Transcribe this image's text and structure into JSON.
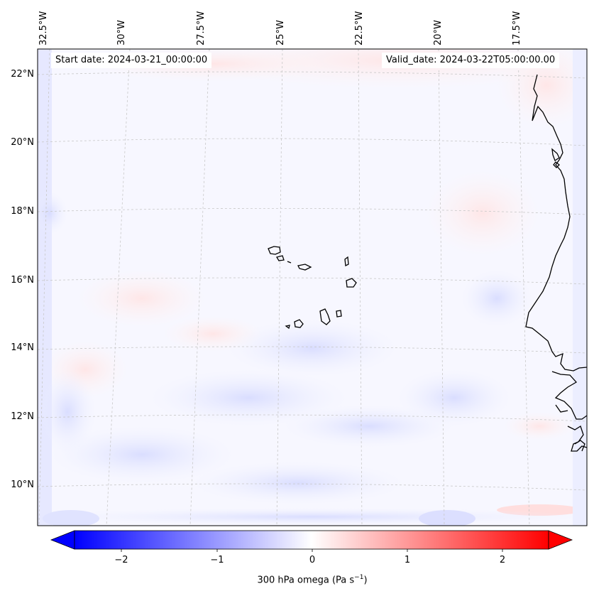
{
  "header": {
    "start_label": "Start date: 2024-03-21_00:00:00",
    "valid_label": "Valid_date: 2024-03-22T05:00:00.00"
  },
  "map": {
    "lon_labels": [
      "32.5°W",
      "30°W",
      "27.5°W",
      "25°W",
      "22.5°W",
      "20°W",
      "17.5°W"
    ],
    "lat_labels": [
      "22°N",
      "20°N",
      "18°N",
      "16°N",
      "14°N",
      "12°N",
      "10°N"
    ],
    "coastline_color": "#000000",
    "grid_color": "#c8c8c8"
  },
  "colorbar": {
    "ticks": [
      "−2",
      "−1",
      "0",
      "1",
      "2"
    ],
    "title": "300 hPa omega (Pa s",
    "title_sup": "−1",
    "title_close": ")",
    "min_color": "#0000ff",
    "mid_color": "#ffffff",
    "max_color": "#ff0000"
  },
  "chart_data": {
    "type": "heatmap",
    "variable": "300 hPa omega",
    "units": "Pa s−1",
    "colormap": "bwr",
    "range": [
      -2.6,
      2.6
    ],
    "ticks": [
      -2,
      -1,
      0,
      1,
      2
    ],
    "lon_ticks": [
      -32.5,
      -30,
      -27.5,
      -25,
      -22.5,
      -20,
      -17.5
    ],
    "lat_ticks": [
      22,
      20,
      18,
      16,
      14,
      12,
      10
    ],
    "field_description_values": {
      "typical_min": -0.5,
      "typical_max": 0.4
    }
  }
}
